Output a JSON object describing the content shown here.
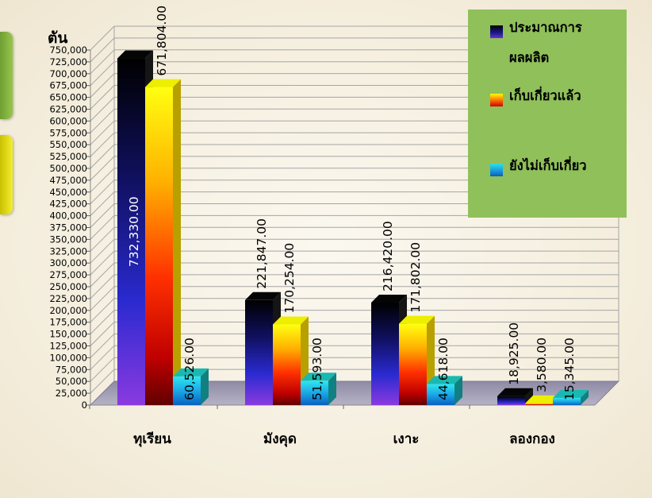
{
  "chart_data": {
    "type": "bar",
    "ylabel": "ตัน",
    "ylim": [
      0,
      750000
    ],
    "ytick_step": 25000,
    "ytick_labels": [
      "0",
      "25,000",
      "50,000",
      "75,000",
      "100,000",
      "125,000",
      "150,000",
      "175,000",
      "200,000",
      "225,000",
      "250,000",
      "275,000",
      "300,000",
      "325,000",
      "350,000",
      "375,000",
      "400,000",
      "425,000",
      "450,000",
      "475,000",
      "500,000",
      "525,000",
      "550,000",
      "575,000",
      "600,000",
      "625,000",
      "650,000",
      "675,000",
      "700,000",
      "725,000",
      "750,000"
    ],
    "categories": [
      "ทุเรียน",
      "มังคุด",
      "เงาะ",
      "ลองกอง"
    ],
    "series": [
      {
        "name": "ประมาณการผลผลิต",
        "values": [
          732330,
          221847,
          216420,
          18925
        ],
        "labels": [
          "732,330.00",
          "221,847.00",
          "216,420.00",
          "18,925.00"
        ]
      },
      {
        "name": "เก็บเกี่ยวแล้ว",
        "values": [
          671804,
          170254,
          171802,
          3580
        ],
        "labels": [
          "671,804.00",
          "170,254.00",
          "171,802.00",
          "3,580.00"
        ]
      },
      {
        "name": "ยังไม่เก็บเกี่ยว",
        "values": [
          60526,
          51593,
          44618,
          15345
        ],
        "labels": [
          "60,526.00",
          "51,593.00",
          "44,618.00",
          "15,345.00"
        ]
      }
    ],
    "grid": true,
    "legend_position": "top-right"
  },
  "legend": {
    "items": [
      {
        "lines": [
          "ประมาณการ",
          "ผลผลิต"
        ]
      },
      {
        "lines": [
          "เก็บเกี่ยวแล้ว"
        ]
      },
      {
        "lines": [
          "ยังไม่เก็บเกี่ยว"
        ]
      }
    ]
  },
  "colors": {
    "series1": [
      "#000000",
      "#1c1c8a",
      "#7a2fd6"
    ],
    "series2": [
      "#ffff00",
      "#ff8000",
      "#c80000",
      "#7a0000"
    ],
    "series3": [
      "#2ee0e8",
      "#1aa0e0",
      "#0a5fb8"
    ],
    "legend_bg": "#90c05a"
  },
  "icons": [
    "legend-swatch-icon"
  ]
}
